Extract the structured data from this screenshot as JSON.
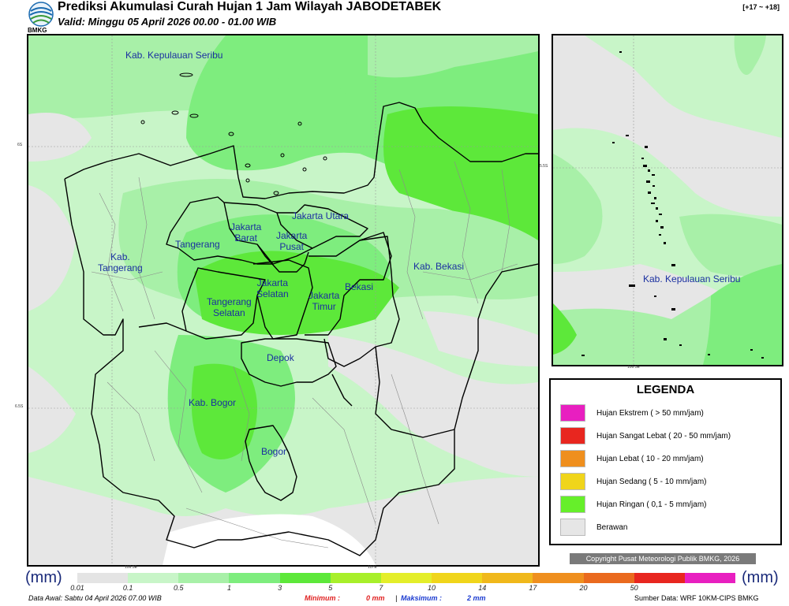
{
  "header": {
    "title": "Prediksi Akumulasi Curah Hujan 1 Jam Wilayah JABODETABEK",
    "valid": "Valid: Minggu 05 April 2026 00.00 - 01.00 WIB",
    "range": "[+17 ~ +18]",
    "logo_text": "BMKG"
  },
  "main_map": {
    "regions": [
      {
        "label": "Kab. Kepulauan Seribu"
      },
      {
        "label": "Kab.\nTangerang"
      },
      {
        "label": "Tangerang"
      },
      {
        "label": "Jakarta\nBarat"
      },
      {
        "label": "Jakarta Utara"
      },
      {
        "label": "Jakarta\nPusat"
      },
      {
        "label": "Kab. Bekasi"
      },
      {
        "label": "Bekasi"
      },
      {
        "label": "Jakarta\nSelatan"
      },
      {
        "label": "Jakarta\nTimur"
      },
      {
        "label": "Tangerang\nSelatan"
      },
      {
        "label": "Depok"
      },
      {
        "label": "Kab. Bogor"
      },
      {
        "label": "Bogor"
      }
    ],
    "lat_ticks": [
      "6S",
      "6.5S"
    ],
    "lon_ticks": [
      "106.5E",
      "107E"
    ]
  },
  "inset_map": {
    "region_label": "Kab. Kepulauan Seribu",
    "lat_tick": "5.5S",
    "lon_tick": "106.5E"
  },
  "legend": {
    "title": "LEGENDA",
    "items": [
      {
        "label": "Hujan Ekstrem ( > 50 mm/jam)",
        "color": "#e81fc0"
      },
      {
        "label": "Hujan Sangat Lebat ( 20 - 50 mm/jam)",
        "color": "#e8261f"
      },
      {
        "label": "Hujan Lebat ( 10 - 20 mm/jam)",
        "color": "#ef8f1e"
      },
      {
        "label": "Hujan Sedang ( 5 - 10 mm/jam)",
        "color": "#f0d51b"
      },
      {
        "label": "Hujan Ringan ( 0,1 - 5 mm/jam)",
        "color": "#66ef2a"
      },
      {
        "label": "Berawan",
        "color": "#e6e6e6"
      }
    ]
  },
  "copyright": "Copyright Pusat Meteorologi Publik BMKG, 2026",
  "colorbar": {
    "unit": "(mm)",
    "ticks": [
      "0.01",
      "0.1",
      "0.5",
      "1",
      "3",
      "5",
      "7",
      "10",
      "14",
      "17",
      "20",
      "50"
    ],
    "colors": [
      "#e4e4e4",
      "#c8f5c8",
      "#a8f0a8",
      "#7eed7e",
      "#5de83a",
      "#a8ef2a",
      "#e4ee2a",
      "#f0d51b",
      "#f0b81b",
      "#ef8f1e",
      "#ea6a1e",
      "#e8261f",
      "#e81fc0"
    ]
  },
  "footer": {
    "data_awal": "Data Awal: Sabtu 04 April 2026 07.00 WIB",
    "minimum_label": "Minimum :",
    "minimum_value": "0 mm",
    "separator": "|",
    "maksimum_label": "Maksimum :",
    "maksimum_value": "2 mm",
    "sumber": "Sumber Data: WRF 10KM-CIPS BMKG"
  }
}
